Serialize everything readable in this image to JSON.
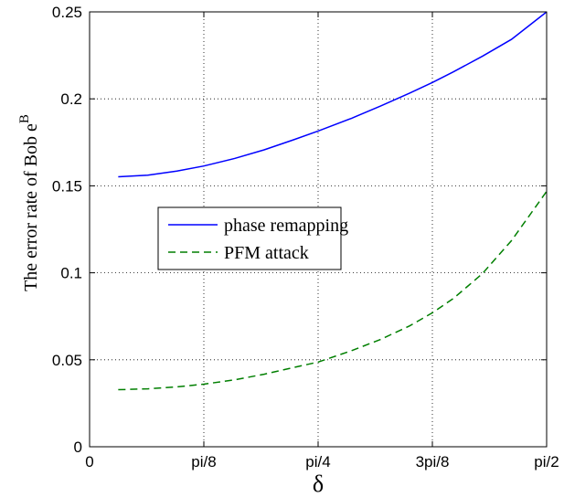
{
  "chart_data": {
    "type": "line",
    "xlabel": "δ",
    "ylabel": "The error rate of Bob e",
    "ylabel_superscript": "B",
    "xlim": [
      0,
      1.5708
    ],
    "ylim": [
      0,
      0.25
    ],
    "xticks": [
      {
        "value": 0,
        "label": "0"
      },
      {
        "value": 0.3927,
        "label": "pi/8"
      },
      {
        "value": 0.7854,
        "label": "pi/4"
      },
      {
        "value": 1.1781,
        "label": "3pi/8"
      },
      {
        "value": 1.5708,
        "label": "pi/2"
      }
    ],
    "yticks": [
      {
        "value": 0,
        "label": "0"
      },
      {
        "value": 0.05,
        "label": "0.05"
      },
      {
        "value": 0.1,
        "label": "0.1"
      },
      {
        "value": 0.15,
        "label": "0.15"
      },
      {
        "value": 0.2,
        "label": "0.2"
      },
      {
        "value": 0.25,
        "label": "0.25"
      }
    ],
    "grid": true,
    "legend_position": "center-left",
    "series": [
      {
        "name": "phase remapping",
        "color": "#0000ff",
        "style": "solid",
        "x": [
          0.0985,
          0.2,
          0.3,
          0.3927,
          0.5,
          0.6,
          0.7,
          0.7854,
          0.9,
          1.0,
          1.1,
          1.1781,
          1.25,
          1.35,
          1.45,
          1.5708
        ],
        "y": [
          0.1552,
          0.1561,
          0.1585,
          0.1614,
          0.1658,
          0.1707,
          0.1764,
          0.1815,
          0.1888,
          0.1959,
          0.2033,
          0.2094,
          0.2155,
          0.2245,
          0.2342,
          0.25
        ]
      },
      {
        "name": "PFM attack",
        "color": "#007f00",
        "style": "dashed",
        "x": [
          0.0985,
          0.2,
          0.3,
          0.3927,
          0.5,
          0.6,
          0.7,
          0.7854,
          0.9,
          1.0,
          1.1,
          1.1781,
          1.25,
          1.35,
          1.45,
          1.5708
        ],
        "y": [
          0.0328,
          0.0333,
          0.0344,
          0.036,
          0.0385,
          0.0417,
          0.0455,
          0.0487,
          0.0552,
          0.0617,
          0.0695,
          0.077,
          0.0852,
          0.0995,
          0.1185,
          0.1468
        ]
      }
    ]
  }
}
